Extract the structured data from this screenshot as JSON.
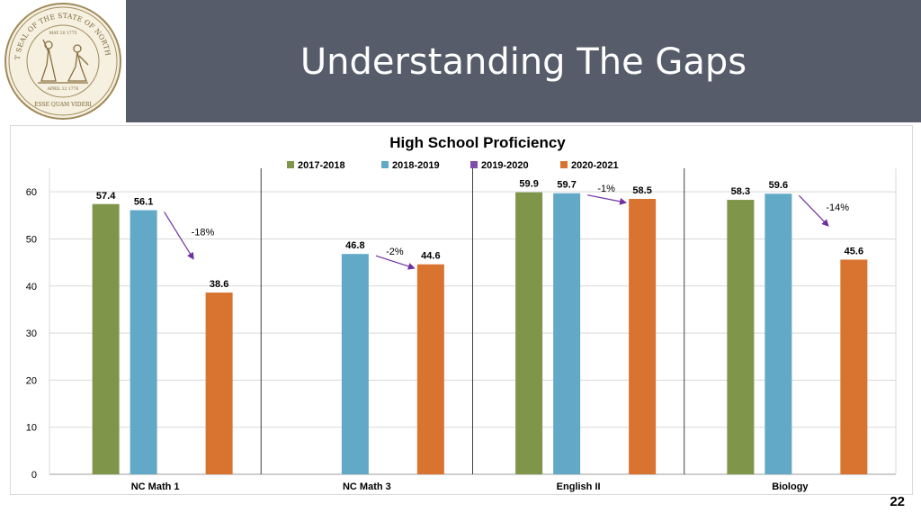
{
  "slide": {
    "title": "Understanding The Gaps",
    "number": "22"
  },
  "seal": {
    "icon": "state-seal-icon",
    "text_top": "THE GREAT SEAL OF THE STATE OF NORTH CAROLINA",
    "text_date_top": "MAY 20 1775",
    "text_date_bottom": "APRIL 12 1776",
    "motto": "ESSE QUAM VIDERI"
  },
  "colors": {
    "header_bg": "#575c6a",
    "series": [
      "#7f9549",
      "#62a9c7",
      "#7f4fab",
      "#d97430"
    ],
    "arrow": "#7030a0"
  },
  "chart_data": {
    "type": "bar",
    "title": "High School Proficiency",
    "categories": [
      "NC Math 1",
      "NC Math 3",
      "English II",
      "Biology"
    ],
    "series": [
      {
        "name": "2017-2018",
        "values": [
          57.4,
          null,
          59.9,
          58.3
        ]
      },
      {
        "name": "2018-2019",
        "values": [
          56.1,
          46.8,
          59.7,
          59.6
        ]
      },
      {
        "name": "2019-2020",
        "values": [
          null,
          null,
          null,
          null
        ]
      },
      {
        "name": "2020-2021",
        "values": [
          38.6,
          44.6,
          58.5,
          45.6
        ]
      }
    ],
    "ylim": [
      0,
      65
    ],
    "yticks": [
      0,
      10,
      20,
      30,
      40,
      50,
      60
    ],
    "grid": true,
    "legend": "top",
    "annotations": [
      {
        "category": "NC Math 1",
        "text": "-18%"
      },
      {
        "category": "NC Math 3",
        "text": "-2%"
      },
      {
        "category": "English II",
        "text": "-1%"
      },
      {
        "category": "Biology",
        "text": "-14%"
      }
    ]
  }
}
